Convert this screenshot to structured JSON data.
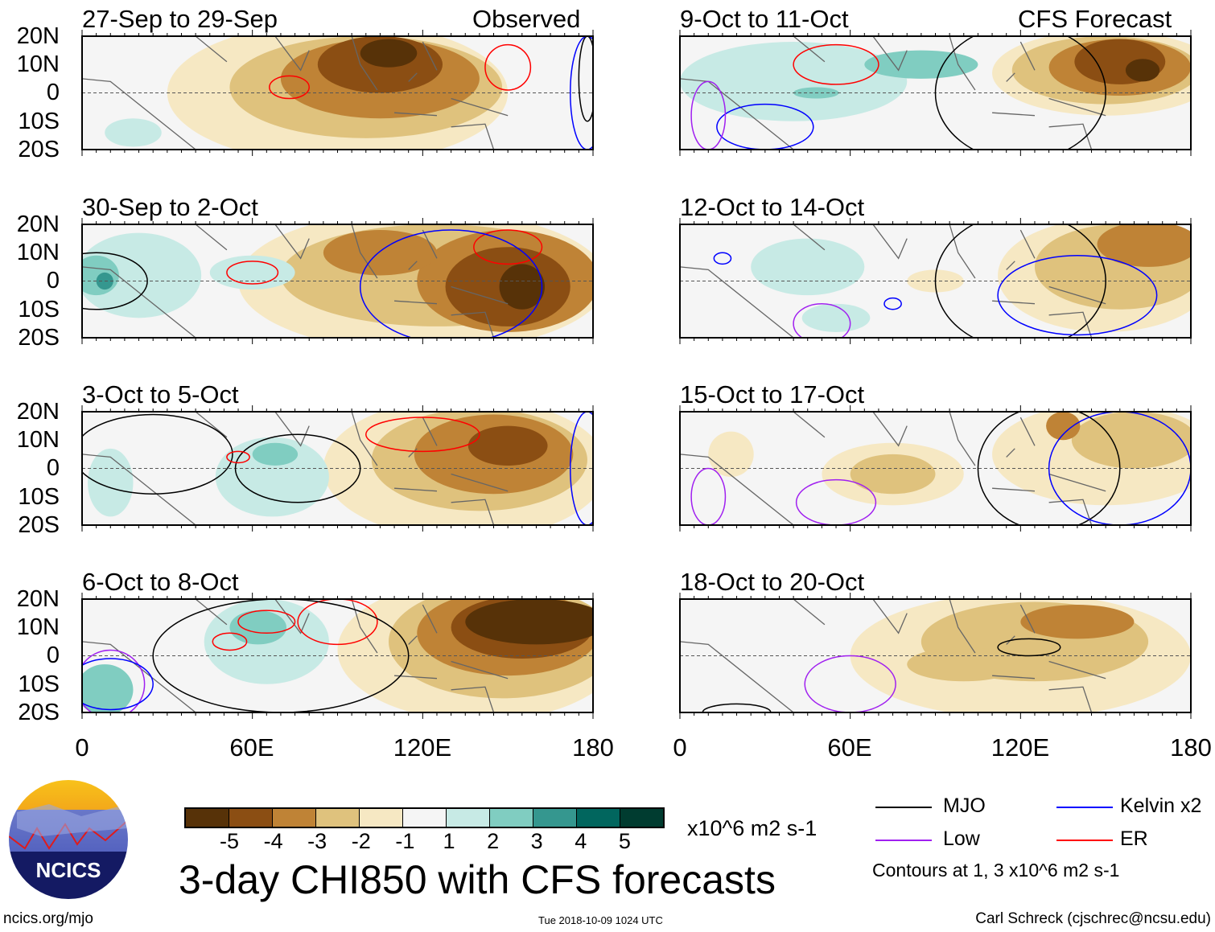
{
  "header": {
    "observed_label": "Observed",
    "forecast_label": "CFS Forecast"
  },
  "y_ticks": [
    "20N",
    "10N",
    "0",
    "10S",
    "20S"
  ],
  "x_ticks": [
    "0",
    "60E",
    "120E",
    "180"
  ],
  "colorbar": {
    "colors": [
      "#573208",
      "#8b4e13",
      "#bf8336",
      "#dfc27d",
      "#f6e8c3",
      "#f5f5f5",
      "#c7eae5",
      "#80cdc1",
      "#35978f",
      "#01665e",
      "#003c30"
    ],
    "labels": [
      "-5",
      "-4",
      "-3",
      "-2",
      "-1",
      "1",
      "2",
      "3",
      "4",
      "5"
    ],
    "units": "x10^6 m2 s-1"
  },
  "title": "3-day CHI850 with CFS forecasts",
  "legend": {
    "mjo": "MJO",
    "kelvin": "Kelvin x2",
    "low": "Low",
    "er": "ER",
    "contours": "Contours at 1, 3 x10^6 m2 s-1",
    "colors": {
      "mjo": "#000000",
      "kelvin": "#0000ff",
      "low": "#a020f0",
      "er": "#ff0000"
    }
  },
  "footer": {
    "url": "ncics.org/mjo",
    "timestamp": "Tue 2018-10-09 1024 UTC",
    "author": "Carl Schreck (cjschrec@ncsu.edu)",
    "logo_text": "NCICS"
  },
  "chart_data": {
    "type": "heatmap",
    "lon_range": [
      0,
      180
    ],
    "lat_range": [
      -20,
      20
    ],
    "panels": [
      {
        "title": "27-Sep to 29-Sep",
        "shade": [
          [
            90,
            0,
            60,
            25,
            -1
          ],
          [
            100,
            2,
            48,
            18,
            -2
          ],
          [
            105,
            5,
            35,
            14,
            -3
          ],
          [
            105,
            10,
            22,
            10,
            -4
          ],
          [
            108,
            14,
            10,
            5,
            -5
          ],
          [
            18,
            -14,
            10,
            5,
            1
          ]
        ],
        "contours": [
          [
            "er",
            150,
            9,
            8,
            8
          ],
          [
            "er",
            73,
            2,
            7,
            4
          ],
          [
            "mjo",
            178,
            5,
            3,
            15
          ],
          [
            "kelvin",
            178,
            0,
            6,
            20
          ]
        ]
      },
      {
        "title": "30-Sep to 2-Oct",
        "shade": [
          [
            120,
            0,
            65,
            25,
            -1
          ],
          [
            125,
            2,
            55,
            18,
            -2
          ],
          [
            150,
            0,
            32,
            18,
            -3
          ],
          [
            150,
            -2,
            22,
            14,
            -4
          ],
          [
            155,
            -2,
            8,
            8,
            -5
          ],
          [
            105,
            10,
            20,
            8,
            -3
          ],
          [
            20,
            2,
            22,
            15,
            1
          ],
          [
            5,
            2,
            8,
            7,
            2
          ],
          [
            8,
            0,
            3,
            3,
            3
          ],
          [
            60,
            3,
            15,
            6,
            1
          ]
        ],
        "contours": [
          [
            "er",
            150,
            12,
            12,
            6
          ],
          [
            "er",
            60,
            3,
            9,
            4
          ],
          [
            "mjo",
            5,
            0,
            18,
            10
          ],
          [
            "kelvin",
            130,
            -2,
            32,
            20
          ]
        ]
      },
      {
        "title": "3-Oct to 5-Oct",
        "shade": [
          [
            135,
            0,
            50,
            25,
            -1
          ],
          [
            140,
            3,
            38,
            18,
            -2
          ],
          [
            145,
            5,
            28,
            14,
            -3
          ],
          [
            150,
            8,
            14,
            7,
            -4
          ],
          [
            67,
            -3,
            20,
            14,
            1
          ],
          [
            68,
            5,
            8,
            4,
            2
          ],
          [
            10,
            -5,
            8,
            12,
            1
          ]
        ],
        "contours": [
          [
            "er",
            120,
            12,
            20,
            6
          ],
          [
            "mjo",
            25,
            5,
            28,
            14
          ],
          [
            "mjo",
            76,
            0,
            22,
            12
          ],
          [
            "er",
            55,
            4,
            4,
            2
          ],
          [
            "kelvin",
            178,
            0,
            6,
            20
          ]
        ]
      },
      {
        "title": "6-Oct to 8-Oct",
        "shade": [
          [
            140,
            2,
            50,
            25,
            -1
          ],
          [
            148,
            5,
            40,
            20,
            -2
          ],
          [
            150,
            8,
            32,
            15,
            -3
          ],
          [
            155,
            10,
            25,
            11,
            -4
          ],
          [
            160,
            12,
            25,
            8,
            -5
          ],
          [
            65,
            5,
            22,
            15,
            1
          ],
          [
            62,
            10,
            10,
            6,
            2
          ],
          [
            8,
            -12,
            10,
            9,
            2
          ]
        ],
        "contours": [
          [
            "er",
            65,
            12,
            10,
            4
          ],
          [
            "er",
            90,
            12,
            14,
            8
          ],
          [
            "er",
            52,
            5,
            6,
            3
          ],
          [
            "mjo",
            70,
            0,
            45,
            20
          ],
          [
            "low",
            10,
            -10,
            12,
            12
          ],
          [
            "kelvin",
            10,
            -10,
            15,
            9
          ]
        ]
      },
      {
        "title": "9-Oct to 11-Oct",
        "shade": [
          [
            150,
            7,
            40,
            15,
            -1
          ],
          [
            150,
            8,
            33,
            12,
            -2
          ],
          [
            155,
            9,
            25,
            10,
            -3
          ],
          [
            155,
            11,
            16,
            8,
            -4
          ],
          [
            163,
            8,
            6,
            4,
            -5
          ],
          [
            40,
            4,
            40,
            14,
            1
          ],
          [
            85,
            10,
            20,
            5,
            2
          ],
          [
            48,
            0,
            8,
            2,
            2
          ]
        ],
        "contours": [
          [
            "er",
            55,
            10,
            15,
            7
          ],
          [
            "kelvin",
            30,
            -12,
            17,
            8
          ],
          [
            "mjo",
            120,
            0,
            30,
            24
          ],
          [
            "low",
            10,
            -8,
            6,
            12
          ]
        ]
      },
      {
        "title": "12-Oct to 14-Oct",
        "shade": [
          [
            150,
            2,
            38,
            20,
            -1
          ],
          [
            155,
            5,
            30,
            15,
            -2
          ],
          [
            165,
            13,
            18,
            8,
            -3
          ],
          [
            90,
            0,
            10,
            4,
            -1
          ],
          [
            55,
            -13,
            12,
            5,
            1
          ],
          [
            45,
            5,
            20,
            10,
            1
          ]
        ],
        "contours": [
          [
            "mjo",
            120,
            0,
            30,
            24
          ],
          [
            "kelvin",
            140,
            -5,
            28,
            14
          ],
          [
            "kelvin",
            75,
            -8,
            3,
            2
          ],
          [
            "kelvin",
            15,
            8,
            3,
            2
          ],
          [
            "low",
            50,
            -15,
            10,
            7
          ]
        ]
      },
      {
        "title": "15-Oct to 17-Oct",
        "shade": [
          [
            150,
            5,
            40,
            18,
            -1
          ],
          [
            160,
            10,
            22,
            10,
            -2
          ],
          [
            135,
            15,
            6,
            5,
            -3
          ],
          [
            75,
            -2,
            25,
            11,
            -1
          ],
          [
            75,
            -2,
            15,
            7,
            -2
          ],
          [
            18,
            5,
            8,
            8,
            -1
          ]
        ],
        "contours": [
          [
            "mjo",
            130,
            0,
            25,
            22
          ],
          [
            "kelvin",
            155,
            0,
            25,
            20
          ],
          [
            "low",
            55,
            -12,
            14,
            8
          ],
          [
            "low",
            10,
            -10,
            6,
            10
          ]
        ]
      },
      {
        "title": "18-Oct to 20-Oct",
        "shade": [
          [
            120,
            0,
            60,
            22,
            -1
          ],
          [
            125,
            5,
            40,
            14,
            -2
          ],
          [
            140,
            12,
            20,
            6,
            -3
          ],
          [
            100,
            -3,
            20,
            6,
            -2
          ]
        ],
        "contours": [
          [
            "mjo",
            123,
            3,
            11,
            3
          ],
          [
            "low",
            60,
            -10,
            16,
            10
          ],
          [
            "mjo",
            20,
            -20,
            12,
            3
          ]
        ]
      }
    ]
  }
}
